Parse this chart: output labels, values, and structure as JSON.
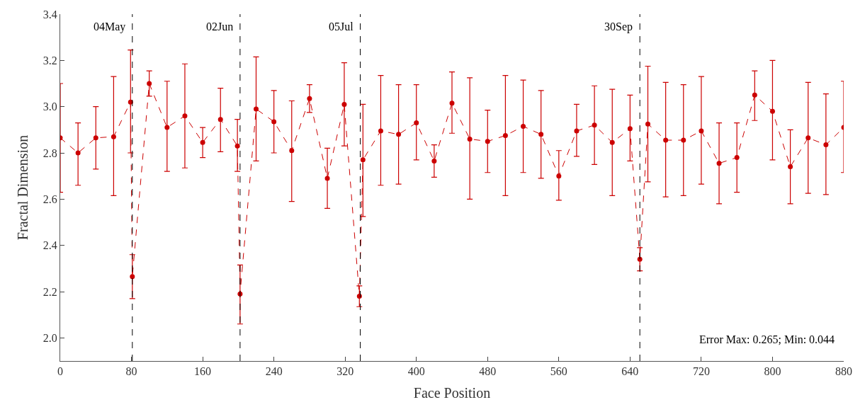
{
  "chart_data": {
    "type": "line",
    "xlabel": "Face Position",
    "ylabel": "Fractal Dimension",
    "x": [
      0,
      20,
      40,
      60,
      79,
      81,
      100,
      120,
      140,
      160,
      180,
      199,
      202,
      220,
      240,
      260,
      280,
      300,
      319,
      336,
      340,
      360,
      380,
      400,
      420,
      440,
      460,
      480,
      500,
      520,
      540,
      560,
      580,
      600,
      620,
      640,
      651,
      660,
      680,
      700,
      720,
      740,
      760,
      780,
      800,
      820,
      840,
      860,
      880
    ],
    "series": [
      {
        "color": "#cc0000",
        "values": [
          2.865,
          2.8,
          2.865,
          2.87,
          3.02,
          2.265,
          3.1,
          2.91,
          2.96,
          2.845,
          2.945,
          2.83,
          2.19,
          2.99,
          2.935,
          2.81,
          3.035,
          2.69,
          3.01,
          2.18,
          2.77,
          2.895,
          2.88,
          2.93,
          2.765,
          3.015,
          2.86,
          2.85,
          2.875,
          2.915,
          2.88,
          2.7,
          2.895,
          2.92,
          2.845,
          2.905,
          2.34,
          2.925,
          2.855,
          2.855,
          2.895,
          2.755,
          2.78,
          3.05,
          2.98,
          2.74,
          2.865,
          2.835,
          2.91
        ],
        "errors": [
          [
            2.63,
            3.1
          ],
          [
            2.66,
            2.93
          ],
          [
            2.73,
            3.0
          ],
          [
            2.615,
            3.13
          ],
          [
            2.8,
            3.245
          ],
          [
            2.17,
            2.36
          ],
          [
            3.045,
            3.155
          ],
          [
            2.72,
            3.11
          ],
          [
            2.735,
            3.185
          ],
          [
            2.78,
            2.91
          ],
          [
            2.805,
            3.08
          ],
          [
            2.72,
            2.945
          ],
          [
            2.06,
            2.315
          ],
          [
            2.765,
            3.215
          ],
          [
            2.8,
            3.07
          ],
          [
            2.59,
            3.025
          ],
          [
            2.975,
            3.095
          ],
          [
            2.56,
            2.82
          ],
          [
            2.83,
            3.19
          ],
          [
            2.135,
            2.225
          ],
          [
            2.525,
            3.01
          ],
          [
            2.66,
            3.135
          ],
          [
            2.665,
            3.095
          ],
          [
            2.77,
            3.095
          ],
          [
            2.695,
            2.835
          ],
          [
            2.885,
            3.15
          ],
          [
            2.6,
            3.125
          ],
          [
            2.715,
            2.985
          ],
          [
            2.615,
            3.135
          ],
          [
            2.715,
            3.115
          ],
          [
            2.69,
            3.07
          ],
          [
            2.595,
            2.81
          ],
          [
            2.785,
            3.01
          ],
          [
            2.75,
            3.09
          ],
          [
            2.615,
            3.075
          ],
          [
            2.765,
            3.05
          ],
          [
            2.29,
            2.39
          ],
          [
            2.675,
            3.175
          ],
          [
            2.61,
            3.105
          ],
          [
            2.615,
            3.095
          ],
          [
            2.665,
            3.13
          ],
          [
            2.58,
            2.93
          ],
          [
            2.63,
            2.93
          ],
          [
            2.94,
            3.155
          ],
          [
            2.77,
            3.2
          ],
          [
            2.58,
            2.9
          ],
          [
            2.625,
            3.105
          ],
          [
            2.62,
            3.055
          ],
          [
            2.715,
            3.11
          ]
        ]
      }
    ],
    "xlim": [
      0,
      880
    ],
    "xticks": [
      0,
      80,
      160,
      240,
      320,
      400,
      480,
      560,
      640,
      720,
      800,
      880
    ],
    "ylim": [
      1.9,
      3.4
    ],
    "yticks": [
      {
        "value": 2.0,
        "label": "2.0"
      },
      {
        "value": 2.2,
        "label": "2.2"
      },
      {
        "value": 2.4,
        "label": "2.4"
      },
      {
        "value": 2.6,
        "label": "2.6"
      },
      {
        "value": 2.8,
        "label": "2.8"
      },
      {
        "value": 3.0,
        "label": "3.0"
      },
      {
        "value": 3.2,
        "label": "3.2"
      },
      {
        "value": 3.4,
        "label": "3.4"
      }
    ],
    "ref_lines": [
      {
        "axis": "x",
        "value": 81,
        "label": "04May",
        "color": "#000000",
        "line_style": "dashed"
      },
      {
        "axis": "x",
        "value": 202,
        "label": "02Jun",
        "color": "#000000",
        "line_style": "dashed"
      },
      {
        "axis": "x",
        "value": 337,
        "label": "05Jul",
        "color": "#000000",
        "line_style": "dashed"
      },
      {
        "axis": "x",
        "value": 651,
        "label": "30Sep",
        "color": "#000000",
        "line_style": "dashed"
      }
    ],
    "annotations": [
      "Error Max: 0.265; Min: 0.044"
    ],
    "marker": "circle",
    "line_style": "dashed"
  }
}
